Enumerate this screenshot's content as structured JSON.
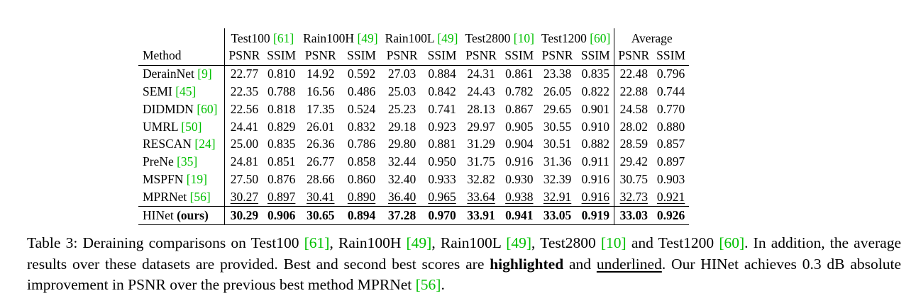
{
  "table": {
    "method_header": "Method",
    "groups": [
      {
        "name": "Test100",
        "ref": "[61]"
      },
      {
        "name": "Rain100H",
        "ref": "[49]"
      },
      {
        "name": "Rain100L",
        "ref": "[49]"
      },
      {
        "name": "Test2800",
        "ref": "[10]"
      },
      {
        "name": "Test1200",
        "ref": "[60]"
      },
      {
        "name": "Average",
        "ref": ""
      }
    ],
    "metric_psnr": "PSNR",
    "metric_ssim": "SSIM",
    "rows": [
      {
        "method": "DerainNet",
        "ref": "[9]",
        "method_suffix": "",
        "values": [
          "22.77",
          "0.810",
          "14.92",
          "0.592",
          "27.03",
          "0.884",
          "24.31",
          "0.861",
          "23.38",
          "0.835",
          "22.48",
          "0.796"
        ]
      },
      {
        "method": "SEMI",
        "ref": "[45]",
        "method_suffix": "",
        "values": [
          "22.35",
          "0.788",
          "16.56",
          "0.486",
          "25.03",
          "0.842",
          "24.43",
          "0.782",
          "26.05",
          "0.822",
          "22.88",
          "0.744"
        ]
      },
      {
        "method": "DIDMDN",
        "ref": "[60]",
        "method_suffix": "",
        "values": [
          "22.56",
          "0.818",
          "17.35",
          "0.524",
          "25.23",
          "0.741",
          "28.13",
          "0.867",
          "29.65",
          "0.901",
          "24.58",
          "0.770"
        ]
      },
      {
        "method": "UMRL",
        "ref": "[50]",
        "method_suffix": "",
        "values": [
          "24.41",
          "0.829",
          "26.01",
          "0.832",
          "29.18",
          "0.923",
          "29.97",
          "0.905",
          "30.55",
          "0.910",
          "28.02",
          "0.880"
        ]
      },
      {
        "method": "RESCAN",
        "ref": "[24]",
        "method_suffix": "",
        "values": [
          "25.00",
          "0.835",
          "26.36",
          "0.786",
          "29.80",
          "0.881",
          "31.29",
          "0.904",
          "30.51",
          "0.882",
          "28.59",
          "0.857"
        ]
      },
      {
        "method": "PreNe",
        "ref": "[35]",
        "method_suffix": "",
        "values": [
          "24.81",
          "0.851",
          "26.77",
          "0.858",
          "32.44",
          "0.950",
          "31.75",
          "0.916",
          "31.36",
          "0.911",
          "29.42",
          "0.897"
        ]
      },
      {
        "method": "MSPFN",
        "ref": "[19]",
        "method_suffix": "",
        "values": [
          "27.50",
          "0.876",
          "28.66",
          "0.860",
          "32.40",
          "0.933",
          "32.82",
          "0.930",
          "32.39",
          "0.916",
          "30.75",
          "0.903"
        ]
      },
      {
        "method": "MPRNet",
        "ref": "[56]",
        "method_suffix": "",
        "style": "underline",
        "values": [
          "30.27",
          "0.897",
          "30.41",
          "0.890",
          "36.40",
          "0.965",
          "33.64",
          "0.938",
          "32.91",
          "0.916",
          "32.73",
          "0.921"
        ]
      },
      {
        "method": "HINet",
        "ref": "",
        "method_suffix": "(ours)",
        "style": "bold",
        "values": [
          "30.29",
          "0.906",
          "30.65",
          "0.894",
          "37.28",
          "0.970",
          "33.91",
          "0.941",
          "33.05",
          "0.919",
          "33.03",
          "0.926"
        ]
      }
    ]
  },
  "caption": {
    "label": "Table 3:",
    "t1": " Deraining comparisons on Test100 ",
    "r1": "[61]",
    "t2": ", Rain100H ",
    "r2": "[49]",
    "t3": ", Rain100L ",
    "r3": "[49]",
    "t4": ", Test2800 ",
    "r4": "[10]",
    "t5": " and Test1200 ",
    "r5": "[60]",
    "t6": ". In addition, the average results over these datasets are provided. Best and second best scores are ",
    "bold_word": "highlighted",
    "t7": " and ",
    "under_word": "underlined",
    "t8": ". Our HINet achieves 0.3 dB absolute improvement in PSNR over the previous best method MPRNet ",
    "r6": "[56]",
    "t9": "."
  }
}
